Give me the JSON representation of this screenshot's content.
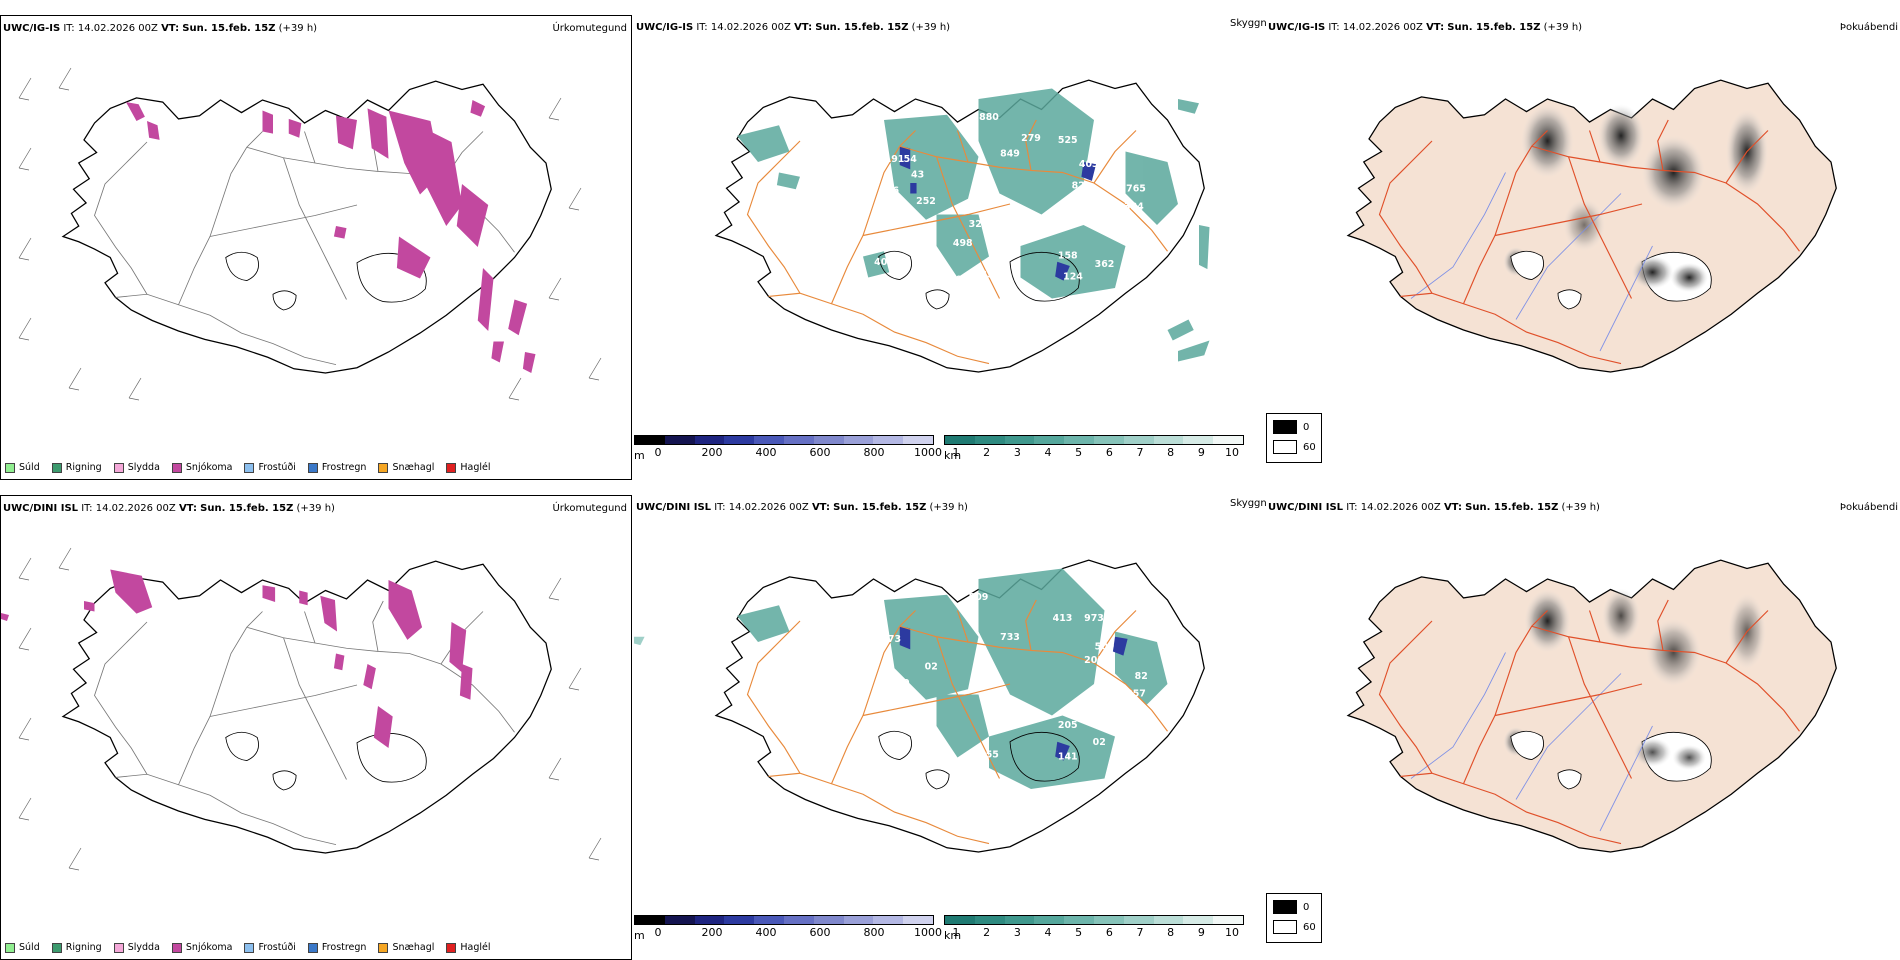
{
  "rows": [
    {
      "model": "UWC/IG-IS",
      "it_label": "IT:",
      "it_value": "14.02.2026 00Z",
      "vt_label": "VT:",
      "vt_value": "Sun. 15.feb. 15Z",
      "lead": "(+39 h)",
      "cloud_labels": [
        "880",
        "279",
        "525",
        "849",
        "191",
        "54",
        "43",
        "403",
        "765",
        "334",
        "246",
        "217",
        "252",
        "82",
        "245",
        "326",
        "498",
        "525",
        "405",
        "158",
        "362",
        "220",
        "235",
        "124"
      ]
    },
    {
      "model": "UWC/DINI ISL",
      "it_label": "IT:",
      "it_value": "14.02.2026 00Z",
      "vt_label": "VT:",
      "vt_value": "Sun. 15.feb. 15Z",
      "lead": "(+39 h)",
      "cloud_labels": [
        "809",
        "413",
        "973",
        "733",
        "73",
        "509",
        "400",
        "02",
        "201",
        "82",
        "257",
        "205",
        "355",
        "141",
        "02"
      ]
    }
  ],
  "panel_names": {
    "precip_type": "Úrkomutegund",
    "ceiling": "Skyggni",
    "fog": "Þokuábendi"
  },
  "precip_legend": [
    {
      "label": "Súld",
      "color": "#90ee90"
    },
    {
      "label": "Rigning",
      "color": "#3c9a6e"
    },
    {
      "label": "Slydda",
      "color": "#f4a8d8"
    },
    {
      "label": "Snjókoma",
      "color": "#c2489f"
    },
    {
      "label": "Frostúði",
      "color": "#8cbfee"
    },
    {
      "label": "Frostregn",
      "color": "#3a78c8"
    },
    {
      "label": "Snæhagl",
      "color": "#f5a623"
    },
    {
      "label": "Haglél",
      "color": "#e02020"
    }
  ],
  "ceiling_scale": {
    "unit": "m",
    "ticks": [
      "0",
      "200",
      "400",
      "600",
      "800",
      "1000"
    ],
    "colors": [
      "#000000",
      "#141450",
      "#1e2480",
      "#2c3aa0",
      "#4a58b8",
      "#6670c4",
      "#8088cc",
      "#9aa0d8",
      "#b4b8e4",
      "#d0d2ee"
    ]
  },
  "visibility_scale": {
    "unit": "km",
    "ticks": [
      "1",
      "2",
      "3",
      "4",
      "5",
      "6",
      "7",
      "8",
      "9",
      "10"
    ],
    "colors": [
      "#1f7a72",
      "#2e8a80",
      "#3f988d",
      "#55a79c",
      "#6db5ab",
      "#86c3b9",
      "#a0d0c8",
      "#bbded7",
      "#d6ebe6",
      "#f2f8f6"
    ]
  },
  "fog_legend": {
    "high": "0",
    "low": "60"
  },
  "colors": {
    "snow": "#c2489f",
    "visibility": "#2e8a80",
    "ceiling_low": "#2c3aa0",
    "roads": "#e88a3c",
    "land_fog": "#f5e2d4",
    "fog_roads": "#e0502a",
    "rivers": "#7d8fe6"
  }
}
